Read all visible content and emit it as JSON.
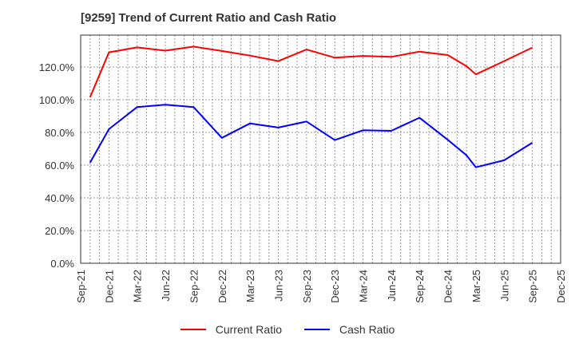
{
  "title": "[9259]  Trend of Current Ratio and Cash Ratio",
  "legend": [
    {
      "label": "Current Ratio",
      "color": "#ff0000"
    },
    {
      "label": "Cash Ratio",
      "color": "#0000ff"
    }
  ],
  "chart_data": {
    "type": "line",
    "title": "[9259]  Trend of Current Ratio and Cash Ratio",
    "xlabel": "",
    "ylabel": "",
    "ylim": [
      0,
      135
    ],
    "yticks": [
      "0.0%",
      "20.0%",
      "40.0%",
      "60.0%",
      "80.0%",
      "100.0%",
      "120.0%"
    ],
    "xticks": [
      "Sep-21",
      "Dec-21",
      "Mar-22",
      "Jun-22",
      "Sep-22",
      "Dec-22",
      "Mar-23",
      "Jun-23",
      "Sep-23",
      "Dec-23",
      "Mar-24",
      "Jun-24",
      "Sep-24",
      "Dec-24",
      "Mar-25",
      "Jun-25",
      "Sep-25",
      "Dec-25"
    ],
    "grid": true,
    "legend_position": "bottom",
    "x": [
      "Oct-21",
      "Dec-21",
      "Mar-22",
      "Jun-22",
      "Sep-22",
      "Dec-22",
      "Mar-23",
      "Jun-23",
      "Sep-23",
      "Dec-23",
      "Mar-24",
      "Jun-24",
      "Sep-24",
      "Dec-24",
      "Feb-25",
      "Mar-25",
      "Jun-25",
      "Sep-25"
    ],
    "x_month_index": [
      1,
      3,
      6,
      9,
      12,
      15,
      18,
      21,
      24,
      27,
      30,
      33,
      36,
      39,
      41,
      42,
      45,
      48
    ],
    "series": [
      {
        "name": "Current Ratio",
        "color": "#ff0000",
        "values": [
          101.5,
          129.0,
          132.0,
          130.0,
          132.5,
          129.8,
          127.0,
          123.6,
          130.7,
          125.7,
          126.8,
          126.2,
          129.4,
          127.3,
          120.5,
          115.5,
          123.6,
          131.9
        ]
      },
      {
        "name": "Cash Ratio",
        "color": "#0000ff",
        "values": [
          61.5,
          82.0,
          95.5,
          97.0,
          95.5,
          76.7,
          85.5,
          83.0,
          86.7,
          75.3,
          81.3,
          81.0,
          89.0,
          75.5,
          66.0,
          58.7,
          63.0,
          73.7
        ]
      }
    ]
  }
}
